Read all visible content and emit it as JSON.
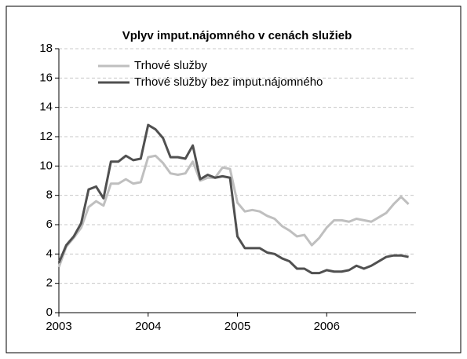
{
  "chart_data": {
    "type": "line",
    "title": "Vplyv imput.nájomného v cenách služieb",
    "x": [
      2003.0,
      2003.083,
      2003.167,
      2003.25,
      2003.333,
      2003.417,
      2003.5,
      2003.583,
      2003.667,
      2003.75,
      2003.833,
      2003.917,
      2004.0,
      2004.083,
      2004.167,
      2004.25,
      2004.333,
      2004.417,
      2004.5,
      2004.583,
      2004.667,
      2004.75,
      2004.833,
      2004.917,
      2005.0,
      2005.083,
      2005.167,
      2005.25,
      2005.333,
      2005.417,
      2005.5,
      2005.583,
      2005.667,
      2005.75,
      2005.833,
      2005.917,
      2006.0,
      2006.083,
      2006.167,
      2006.25,
      2006.333,
      2006.417,
      2006.5,
      2006.583,
      2006.667,
      2006.75,
      2006.833,
      2006.917
    ],
    "series": [
      {
        "name": "Trhové služby",
        "color": "#bfbfbf",
        "values": [
          3.1,
          4.5,
          5.1,
          5.8,
          7.2,
          7.6,
          7.3,
          8.8,
          8.8,
          9.1,
          8.8,
          8.9,
          10.6,
          10.7,
          10.2,
          9.5,
          9.4,
          9.5,
          10.3,
          9.0,
          9.2,
          9.2,
          9.9,
          9.8,
          7.5,
          6.9,
          7.0,
          6.9,
          6.6,
          6.4,
          5.9,
          5.6,
          5.2,
          5.3,
          4.6,
          5.1,
          5.8,
          6.3,
          6.3,
          6.2,
          6.4,
          6.3,
          6.2,
          6.5,
          6.8,
          7.4,
          7.9,
          7.4
        ]
      },
      {
        "name": "Trhové služby bez imput.nájomného",
        "color": "#505050",
        "values": [
          3.4,
          4.6,
          5.2,
          6.1,
          8.4,
          8.6,
          7.8,
          10.3,
          10.3,
          10.7,
          10.4,
          10.5,
          12.8,
          12.5,
          11.9,
          10.6,
          10.6,
          10.5,
          11.4,
          9.1,
          9.4,
          9.2,
          9.3,
          9.2,
          5.2,
          4.4,
          4.4,
          4.4,
          4.1,
          4.0,
          3.7,
          3.5,
          3.0,
          3.0,
          2.7,
          2.7,
          2.9,
          2.8,
          2.8,
          2.9,
          3.2,
          3.0,
          3.2,
          3.5,
          3.8,
          3.9,
          3.9,
          3.8
        ]
      }
    ],
    "xlim": [
      2003,
      2007
    ],
    "xticks": [
      2003,
      2004,
      2005,
      2006
    ],
    "ylim": [
      0,
      18
    ],
    "yticks": [
      0,
      2,
      4,
      6,
      8,
      10,
      12,
      14,
      16,
      18
    ],
    "grid": true
  }
}
